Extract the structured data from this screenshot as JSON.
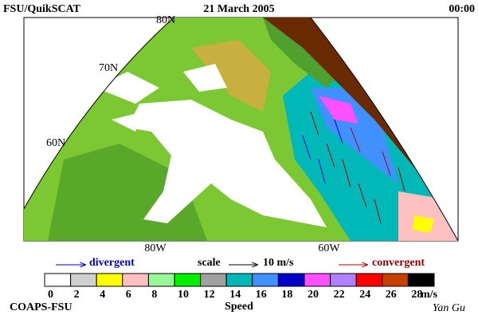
{
  "header": {
    "title": "FSU/QuikSCAT",
    "date": "21 March 2005",
    "time": "00:00"
  },
  "map": {
    "lat_labels": [
      "80N",
      "70N",
      "60N"
    ],
    "lon_labels": [
      "80W",
      "60W"
    ]
  },
  "arrow_legend": {
    "divergent": "divergent",
    "scale": "scale",
    "scale_value": "10 m/s",
    "convergent": "convergent"
  },
  "colorbar": {
    "ticks": [
      0,
      2,
      4,
      6,
      8,
      10,
      12,
      14,
      16,
      18,
      20,
      22,
      24,
      26,
      28
    ],
    "colors": [
      "#ffffff",
      "#d0d0d0",
      "#ffff00",
      "#ffc0c0",
      "#98f898",
      "#00f000",
      "#a0a0a0",
      "#00b8b8",
      "#4090ff",
      "#0000c8",
      "#ff50ff",
      "#b080ff",
      "#ff0000",
      "#c84000",
      "#000000"
    ],
    "unit": "m/s",
    "label": "Speed"
  },
  "footer": {
    "left": "COAPS-FSU",
    "right": "Yan Gu"
  }
}
